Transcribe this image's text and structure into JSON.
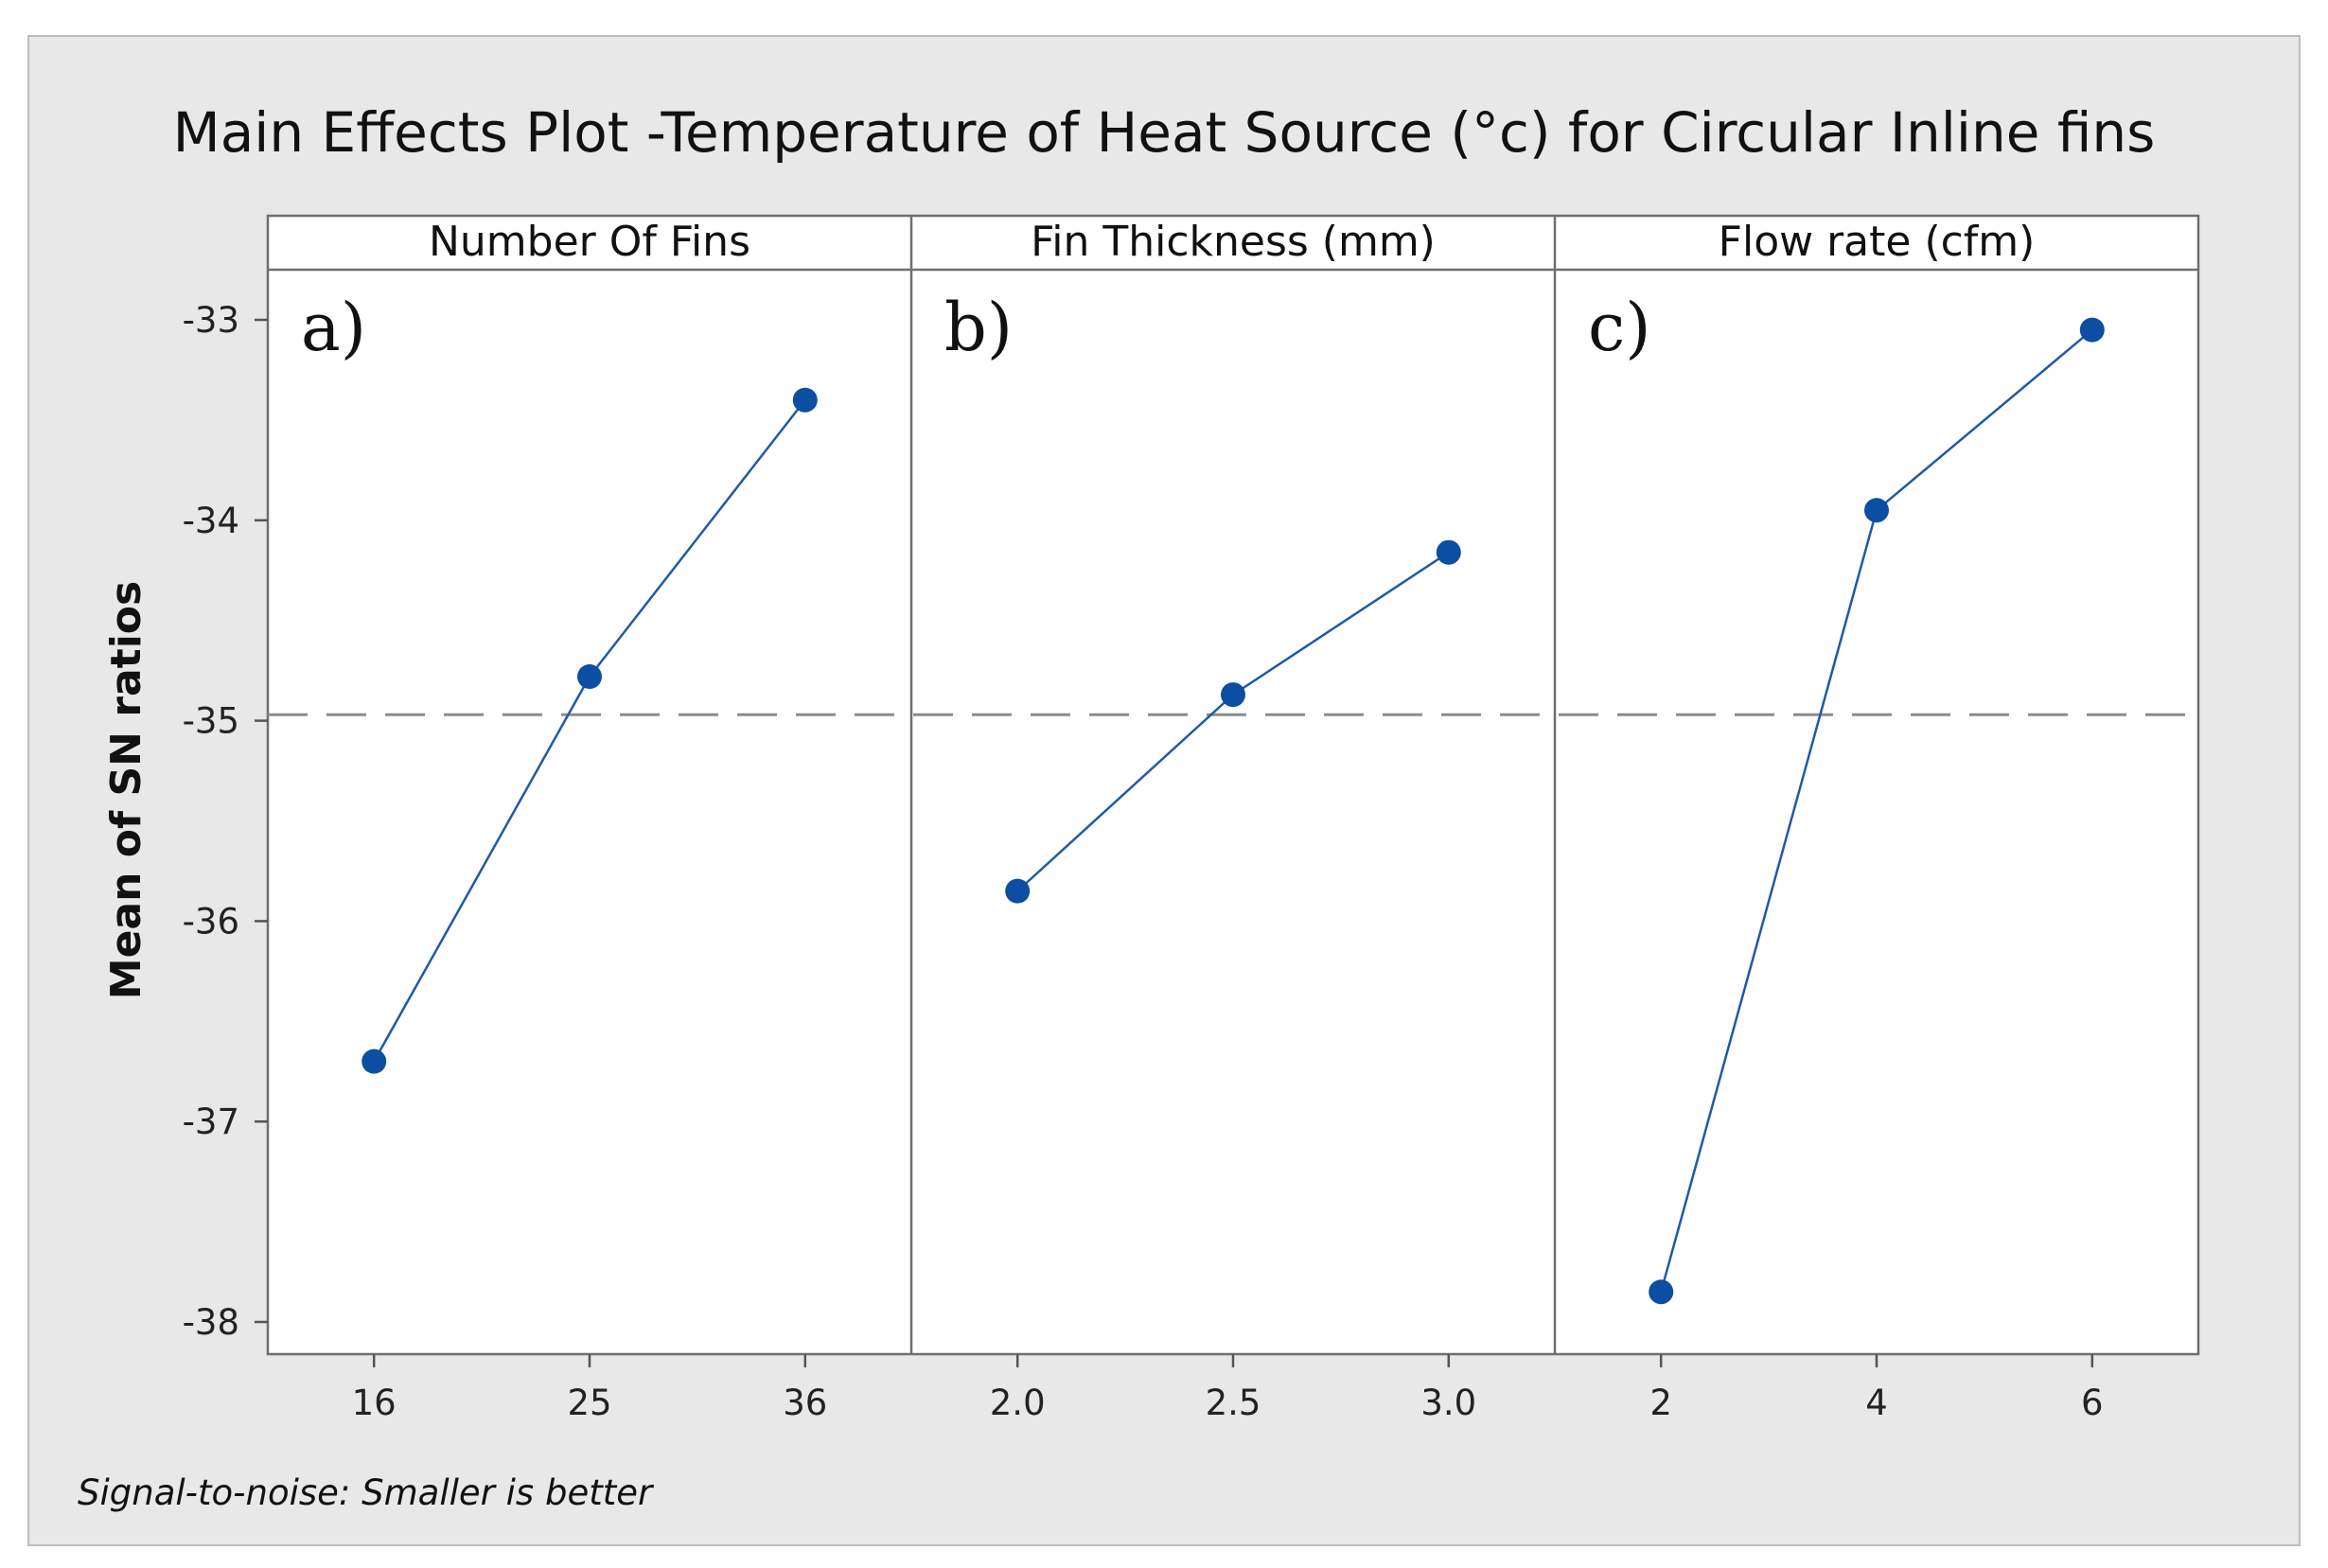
{
  "chart_data": {
    "type": "line",
    "title": "Main Effects Plot -Temperature of Heat Source (°c) for Circular Inline fins",
    "ylabel": "Mean of SN ratios",
    "ylim": [
      -38.15,
      -32.75
    ],
    "yticks": [
      -33,
      -34,
      -35,
      -36,
      -37,
      -38
    ],
    "mean_line": -34.97,
    "footnote": "Signal-to-noise: Smaller is better",
    "line_color": "#1f5aa6",
    "marker_color": "#0b4ea2",
    "background_color": "#e8e8e8",
    "panels": [
      {
        "label": "Number Of Fins",
        "annotation": "a)",
        "categories": [
          "16",
          "25",
          "36"
        ],
        "values": [
          -36.7,
          -34.78,
          -33.4
        ]
      },
      {
        "label": "Fin Thickness (mm)",
        "annotation": "b)",
        "categories": [
          "2.0",
          "2.5",
          "3.0"
        ],
        "values": [
          -35.85,
          -34.87,
          -34.16
        ]
      },
      {
        "label": "Flow rate (cfm)",
        "annotation": "c)",
        "categories": [
          "2",
          "4",
          "6"
        ],
        "values": [
          -37.85,
          -33.95,
          -33.05
        ]
      }
    ]
  }
}
